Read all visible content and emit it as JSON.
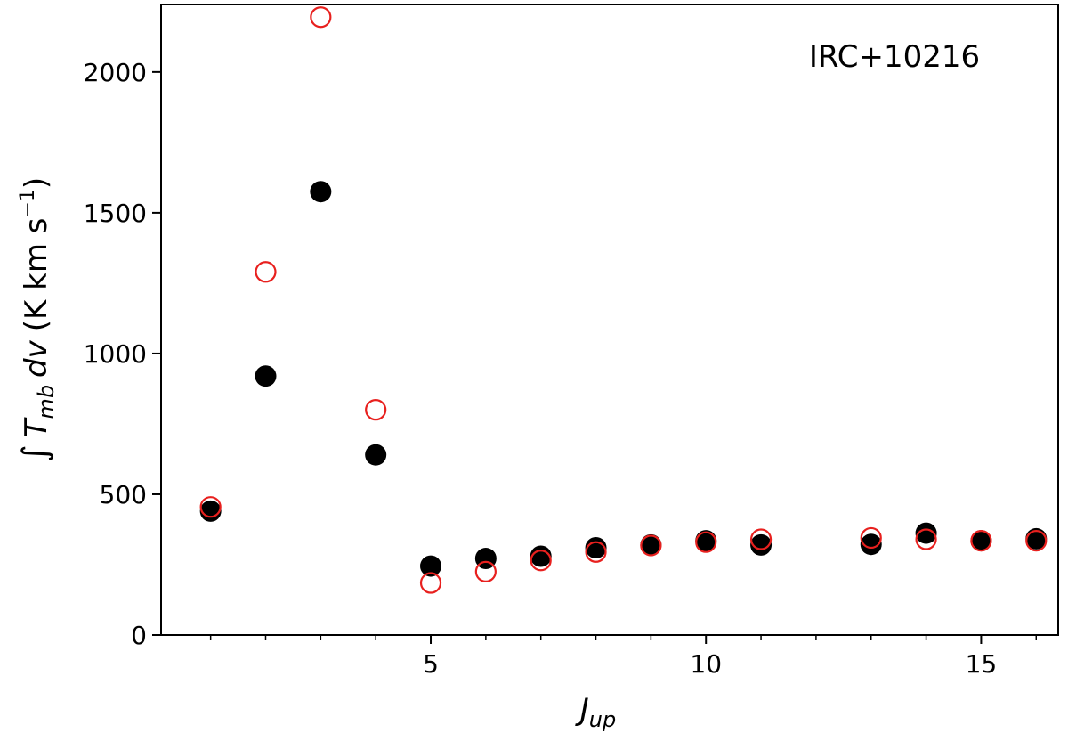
{
  "chart_data": {
    "type": "scatter",
    "title": "",
    "xlabel": "J_up",
    "ylabel": "∫ T_mb dv (K km s^-1)",
    "annotation": "IRC+10216",
    "xlim": [
      0.1,
      16.4
    ],
    "ylim": [
      0,
      2240
    ],
    "xticks": [
      5,
      10,
      15
    ],
    "xminor_ticks": [
      1,
      2,
      3,
      4,
      6,
      7,
      8,
      9,
      11,
      12,
      13,
      14,
      16
    ],
    "yticks": [
      0,
      500,
      1000,
      1500,
      2000
    ],
    "grid": false,
    "series": [
      {
        "marker": "filled-circle",
        "color": "#000000",
        "x": [
          1,
          2,
          3,
          4,
          5,
          6,
          7,
          8,
          9,
          10,
          11,
          13,
          14,
          15,
          16
        ],
        "y": [
          440,
          920,
          1575,
          640,
          245,
          272,
          280,
          310,
          320,
          335,
          320,
          322,
          362,
          335,
          342
        ]
      },
      {
        "marker": "open-circle",
        "color": "#e8201e",
        "x": [
          1,
          2,
          3,
          4,
          5,
          6,
          7,
          8,
          9,
          10,
          11,
          13,
          14,
          15,
          16
        ],
        "y": [
          455,
          1290,
          2195,
          800,
          185,
          225,
          265,
          295,
          318,
          330,
          340,
          345,
          340,
          335,
          335
        ]
      }
    ]
  },
  "labels": {
    "y_integral": "∫",
    "y_T": "T",
    "y_mb": "mb",
    "y_dv": "dv",
    "y_units_open": "(K km s",
    "y_units_exp": "−1",
    "y_units_close": ")",
    "x_J": "J",
    "x_up": "up"
  }
}
